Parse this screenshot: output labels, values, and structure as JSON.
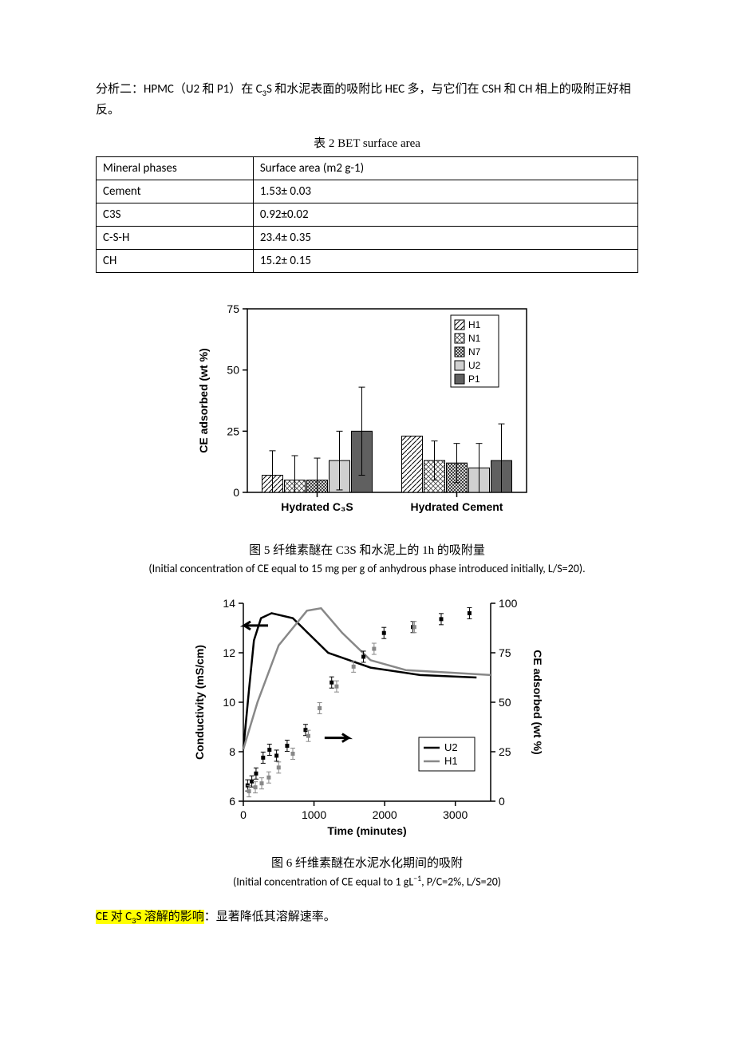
{
  "para1_a": "分析二：HPMC（U2 和 P1）在 C",
  "para1_b": "S 和水泥表面的吸附比 HEC 多，与它们在 CSH 和 CH 相上的吸附正好相反。",
  "table_caption": "表 2 BET surface area",
  "table": {
    "header": [
      "Mineral phases",
      "Surface area (m2 g-1)"
    ],
    "rows": [
      [
        "Cement",
        "1.53± 0.03"
      ],
      [
        "C3S",
        "0.92±0.02"
      ],
      [
        "C-S-H",
        "23.4± 0.35"
      ],
      [
        "CH",
        "15.2± 0.15"
      ]
    ]
  },
  "fig5": {
    "type": "bar",
    "ylabel": "CE adsorbed (wt %)",
    "ylim": [
      0,
      75
    ],
    "ytick_step": 25,
    "categories": [
      "Hydrated C₃S",
      "Hydrated Cement"
    ],
    "series": [
      "H1",
      "N1",
      "N7",
      "U2",
      "P1"
    ],
    "patterns": [
      "diag",
      "cross",
      "dense-cross",
      "light-gray",
      "dark-gray"
    ],
    "values": [
      [
        7,
        5,
        5,
        13,
        25
      ],
      [
        23,
        13,
        12,
        10,
        13
      ]
    ],
    "errors": [
      [
        10,
        10,
        9,
        12,
        18
      ],
      [
        0,
        8,
        8,
        10,
        15
      ]
    ],
    "axis_color": "#000000",
    "background_color": "#ffffff",
    "bar_border": "#000000",
    "caption": "图 5 纤维素醚在 C3S 和水泥上的 1h 的吸附量",
    "subcaption": "(Initial concentration of CE equal to 15 mg per g of anhydrous phase introduced initially, L/S=20)."
  },
  "fig6": {
    "type": "line-dual-axis",
    "xlabel": "Time (minutes)",
    "ylabel_left": "Conductivity (mS/cm)",
    "ylabel_right": "CE adsorbed (wt %)",
    "xlim": [
      0,
      3500
    ],
    "xticks": [
      0,
      1000,
      2000,
      3000
    ],
    "ylim_left": [
      6,
      14
    ],
    "yticks_left": [
      6,
      8,
      10,
      12,
      14
    ],
    "ylim_right": [
      0,
      100
    ],
    "yticks_right": [
      0,
      25,
      50,
      75,
      100
    ],
    "legend": [
      "U2",
      "H1"
    ],
    "colors": {
      "U2": "#000000",
      "H1": "#888888"
    },
    "U2_line": [
      [
        0,
        8.1
      ],
      [
        80,
        10.5
      ],
      [
        150,
        12.5
      ],
      [
        250,
        13.4
      ],
      [
        400,
        13.6
      ],
      [
        700,
        13.4
      ],
      [
        1200,
        12.0
      ],
      [
        1800,
        11.4
      ],
      [
        2500,
        11.1
      ],
      [
        3300,
        11.0
      ]
    ],
    "H1_line": [
      [
        0,
        8.1
      ],
      [
        200,
        10.0
      ],
      [
        500,
        12.3
      ],
      [
        900,
        13.7
      ],
      [
        1100,
        13.8
      ],
      [
        1400,
        12.8
      ],
      [
        1800,
        11.7
      ],
      [
        2300,
        11.3
      ],
      [
        2900,
        11.2
      ],
      [
        3500,
        11.1
      ]
    ],
    "U2_pts": [
      [
        60,
        8
      ],
      [
        120,
        10
      ],
      [
        180,
        14
      ],
      [
        280,
        22
      ],
      [
        370,
        26
      ],
      [
        470,
        23
      ],
      [
        620,
        28
      ],
      [
        880,
        36
      ],
      [
        1250,
        60
      ],
      [
        1700,
        73
      ],
      [
        1990,
        85
      ],
      [
        2400,
        88
      ],
      [
        2800,
        92
      ],
      [
        3200,
        95
      ]
    ],
    "H1_pts": [
      [
        80,
        5
      ],
      [
        170,
        7
      ],
      [
        260,
        9
      ],
      [
        360,
        12
      ],
      [
        500,
        17
      ],
      [
        700,
        24
      ],
      [
        920,
        33
      ],
      [
        1080,
        47
      ],
      [
        1320,
        58
      ],
      [
        1560,
        68
      ],
      [
        1850,
        77
      ],
      [
        2420,
        88
      ]
    ],
    "caption": "图 6 纤维素醚在水泥水化期间的吸附",
    "subcaption_a": "(Initial concentration of CE equal to 1 gL",
    "subcaption_b": ", P/C=2%, L/S=20)"
  },
  "para2_a": "CE 对 C",
  "para2_b": "S 溶解的影响",
  "para2_c": "：显著降低其溶解速率。"
}
